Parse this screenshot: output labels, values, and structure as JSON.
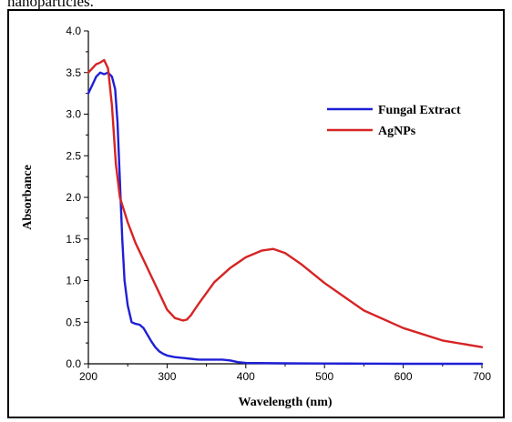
{
  "caption_fragment": "nanoparticles.",
  "chart_data": {
    "type": "line",
    "title": "",
    "xlabel": "Wavelength (nm)",
    "ylabel": "Absorbance",
    "xlim": [
      200,
      700
    ],
    "ylim": [
      0,
      4.0
    ],
    "x_ticks": [
      200,
      300,
      400,
      500,
      600,
      700
    ],
    "x_tick_labels": [
      "200",
      "300",
      "400",
      "500",
      "600",
      "700"
    ],
    "y_ticks": [
      0,
      0.5,
      1.0,
      1.5,
      2.0,
      2.5,
      3.0,
      3.5,
      4.0
    ],
    "y_tick_labels": [
      "0.0",
      "0.5",
      "1.0",
      "1.5",
      "2.0",
      "2.5",
      "3.0",
      "3.5",
      "4.0"
    ],
    "grid": false,
    "legend_position": "top-right",
    "series": [
      {
        "name": "Fungal Extract",
        "color": "#1f1fd6",
        "x": [
          200,
          205,
          210,
          215,
          220,
          225,
          230,
          234,
          237,
          240,
          243,
          246,
          250,
          255,
          260,
          265,
          270,
          275,
          280,
          285,
          290,
          295,
          300,
          310,
          320,
          330,
          340,
          350,
          360,
          370,
          380,
          390,
          400,
          450,
          500,
          550,
          600,
          650,
          700
        ],
        "y": [
          3.25,
          3.35,
          3.45,
          3.5,
          3.48,
          3.5,
          3.45,
          3.3,
          2.9,
          2.2,
          1.5,
          1.0,
          0.7,
          0.5,
          0.48,
          0.47,
          0.43,
          0.35,
          0.27,
          0.2,
          0.15,
          0.12,
          0.1,
          0.08,
          0.07,
          0.06,
          0.05,
          0.05,
          0.05,
          0.05,
          0.04,
          0.02,
          0.01,
          0.005,
          0.003,
          0.002,
          0.0,
          0.0,
          0.0
        ]
      },
      {
        "name": "AgNPs",
        "color": "#d62424",
        "x": [
          200,
          205,
          210,
          215,
          220,
          225,
          230,
          235,
          240,
          245,
          250,
          260,
          270,
          280,
          290,
          300,
          310,
          320,
          325,
          330,
          335,
          340,
          350,
          360,
          380,
          400,
          420,
          435,
          450,
          470,
          500,
          550,
          600,
          650,
          700
        ],
        "y": [
          3.5,
          3.55,
          3.6,
          3.62,
          3.65,
          3.55,
          3.1,
          2.4,
          2.0,
          1.85,
          1.7,
          1.45,
          1.25,
          1.05,
          0.85,
          0.65,
          0.55,
          0.52,
          0.53,
          0.58,
          0.65,
          0.72,
          0.85,
          0.98,
          1.15,
          1.28,
          1.36,
          1.38,
          1.33,
          1.2,
          0.97,
          0.64,
          0.43,
          0.28,
          0.2
        ]
      }
    ]
  }
}
